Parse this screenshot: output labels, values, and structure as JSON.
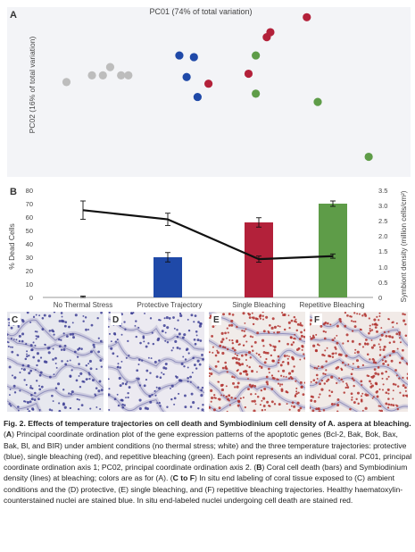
{
  "panel_labels": {
    "a": "A",
    "b": "B",
    "c": "C",
    "d": "D",
    "e": "E",
    "f": "F"
  },
  "colors": {
    "no_stress": "#bdbdbd",
    "protective": "#1f49a8",
    "single": "#b3213a",
    "repetitive": "#5e9c48",
    "line": "#111111",
    "panel_a_bg": "#f3f4f7"
  },
  "chart_data": [
    {
      "type": "scatter",
      "title": "",
      "xlabel": "PC01 (74% of total variation)",
      "ylabel": "PC02 (16% of total variation)",
      "series": [
        {
          "points": [
            [
              0.06,
              0.56
            ],
            [
              0.13,
              0.6
            ],
            [
              0.16,
              0.6
            ],
            [
              0.18,
              0.65
            ],
            [
              0.21,
              0.6
            ],
            [
              0.23,
              0.6
            ]
          ]
        },
        {
          "points": [
            [
              0.37,
              0.72
            ],
            [
              0.41,
              0.71
            ],
            [
              0.39,
              0.59
            ],
            [
              0.42,
              0.47
            ]
          ]
        },
        {
          "points": [
            [
              0.45,
              0.55
            ],
            [
              0.56,
              0.61
            ],
            [
              0.61,
              0.83
            ],
            [
              0.62,
              0.86
            ],
            [
              0.72,
              0.95
            ]
          ]
        },
        {
          "points": [
            [
              0.58,
              0.72
            ],
            [
              0.58,
              0.49
            ],
            [
              0.75,
              0.44
            ],
            [
              0.89,
              0.11
            ]
          ]
        }
      ]
    },
    {
      "type": "bar",
      "categories": [
        "No Thermal Stress",
        "Protective Trajectory",
        "Single Bleaching",
        "Repetitive Bleaching"
      ],
      "ylabel": "% Dead Cells",
      "y2label": "Symbiont density (million cells/cm²)",
      "ylim": [
        0,
        80
      ],
      "y2lim": [
        0,
        3.5
      ],
      "yticks": [
        "0",
        "10",
        "20",
        "30",
        "40",
        "50",
        "60",
        "70",
        "80"
      ],
      "y2ticks": [
        "0",
        "0.5",
        "1.0",
        "1.5",
        "2.0",
        "2.5",
        "3.0",
        "3.5"
      ],
      "series": [
        {
          "name": "% Dead Cells",
          "values": [
            0.5,
            30,
            56,
            70
          ],
          "error": [
            0.5,
            3.5,
            3.5,
            2
          ]
        },
        {
          "name": "Symbiont density",
          "values": [
            2.85,
            2.55,
            1.25,
            1.35
          ],
          "error": [
            0.3,
            0.2,
            0.1,
            0.07
          ]
        }
      ]
    }
  ],
  "caption": {
    "title": "Fig. 2. Effects of temperature trajectories on cell death and Symbiodinium cell density of A. aspera at bleaching.",
    "body_parts": [
      " (",
      "A",
      ") Principal coordinate ordination plot of the gene expression patterns of the apoptotic genes (Bcl-2, Bak, Bok, Bax, Bak, Bl, and BIR) under ambient conditions (no thermal stress; white) and the three temperature trajectories: protective (blue), single bleaching (red), and repetitive bleaching (green). Each point represents an individual coral. PC01, principal coordinate ordination axis 1; PC02, principal coordinate ordination axis 2. (",
      "B",
      ") Coral cell death (bars) and Symbiodinium density (lines) at bleaching; colors are as for (A). (",
      "C to F",
      ") In situ end labeling of coral tissue exposed to (C) ambient conditions and the (D) protective, (E) single bleaching, and (F) repetitive bleaching trajectories. Healthy haematoxylin-counterstained nuclei are stained blue. In situ end-labeled nuclei undergoing cell death are stained red."
    ]
  }
}
